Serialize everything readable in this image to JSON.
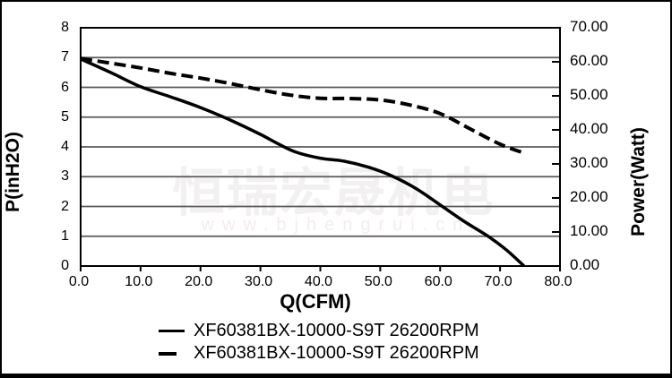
{
  "watermark": {
    "text": "恒瑞宏晟机电",
    "url": "www.bjhengrui.cn"
  },
  "chart_data": {
    "type": "line",
    "title": "",
    "xlabel": "Q(CFM)",
    "ylabel_left": "P(inH2O)",
    "ylabel_right": "Power(Watt)",
    "x_range": [
      0,
      80
    ],
    "y_left_range": [
      0,
      8
    ],
    "y_right_range": [
      0,
      70
    ],
    "x_ticks": [
      "0.0",
      "10.0",
      "20.0",
      "30.0",
      "40.0",
      "50.0",
      "60.0",
      "70.0",
      "80.0"
    ],
    "x_tick_values": [
      0,
      10,
      20,
      30,
      40,
      50,
      60,
      70,
      80
    ],
    "y_left_ticks": [
      "8",
      "7",
      "6",
      "5",
      "4",
      "3",
      "2",
      "1",
      "0"
    ],
    "y_left_tick_values": [
      8,
      7,
      6,
      5,
      4,
      3,
      2,
      1,
      0
    ],
    "y_right_ticks": [
      "70.00",
      "60.00",
      "50.00",
      "40.00",
      "30.00",
      "20.00",
      "10.00",
      "0.00"
    ],
    "y_right_tick_values": [
      70,
      60,
      50,
      40,
      30,
      20,
      10,
      0
    ],
    "grid": "horizontal gridlines at each left-axis integer",
    "legend_position": "bottom",
    "series": [
      {
        "name": "XF60381BX-10000-S9T 26200RPM",
        "style": "solid",
        "axis": "left",
        "x": [
          0,
          5,
          10,
          15,
          20,
          25,
          30,
          33,
          36,
          40,
          44,
          48,
          52,
          56,
          60,
          64,
          68,
          71,
          74
        ],
        "y": [
          6.95,
          6.5,
          6.02,
          5.68,
          5.32,
          4.9,
          4.42,
          4.1,
          3.82,
          3.62,
          3.52,
          3.32,
          3.02,
          2.6,
          2.05,
          1.5,
          1.0,
          0.55,
          0.0
        ]
      },
      {
        "name": "XF60381BX-10000-S9T 26200RPM",
        "style": "dashed",
        "axis": "right",
        "x": [
          0,
          5,
          10,
          15,
          20,
          25,
          30,
          35,
          40,
          45,
          50,
          55,
          60,
          65,
          70,
          74
        ],
        "y": [
          61.0,
          59.6,
          58.2,
          56.6,
          55.2,
          53.6,
          51.8,
          50.2,
          49.3,
          49.2,
          48.8,
          47.3,
          44.8,
          40.3,
          35.8,
          33.2
        ]
      }
    ]
  },
  "legend": [
    {
      "label": "XF60381BX-10000-S9T 26200RPM",
      "style": "solid"
    },
    {
      "label": "XF60381BX-10000-S9T 26200RPM",
      "style": "dashed"
    }
  ],
  "colors": {
    "line": "#000000",
    "grid": "#595959",
    "frame": "#000000",
    "background": "#ffffff",
    "watermark_text": "#f2f0f0",
    "watermark_url": "#f5ecec"
  }
}
